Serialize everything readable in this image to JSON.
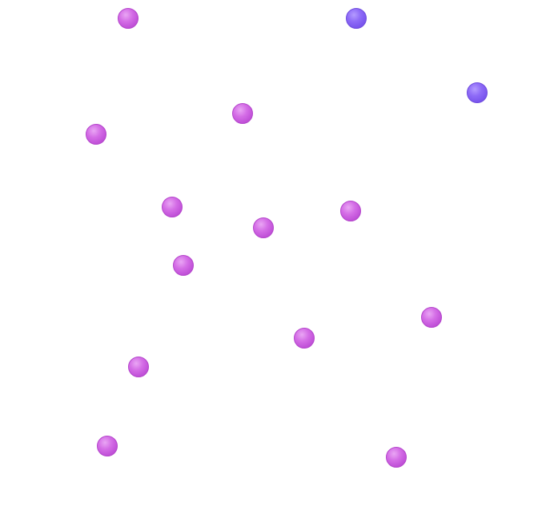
{
  "palette": {
    "background": "#ffffff",
    "purple_ball": "#d06be3",
    "violet_ball": "#8a68f5"
  },
  "balls": [
    {
      "color": "purple"
    },
    {
      "color": "violet"
    },
    {
      "color": "violet"
    },
    {
      "color": "purple"
    },
    {
      "color": "purple"
    },
    {
      "color": "purple"
    },
    {
      "color": "purple"
    },
    {
      "color": "purple"
    },
    {
      "color": "purple"
    },
    {
      "color": "purple"
    },
    {
      "color": "purple"
    },
    {
      "color": "purple"
    },
    {
      "color": "purple"
    },
    {
      "color": "purple"
    }
  ]
}
